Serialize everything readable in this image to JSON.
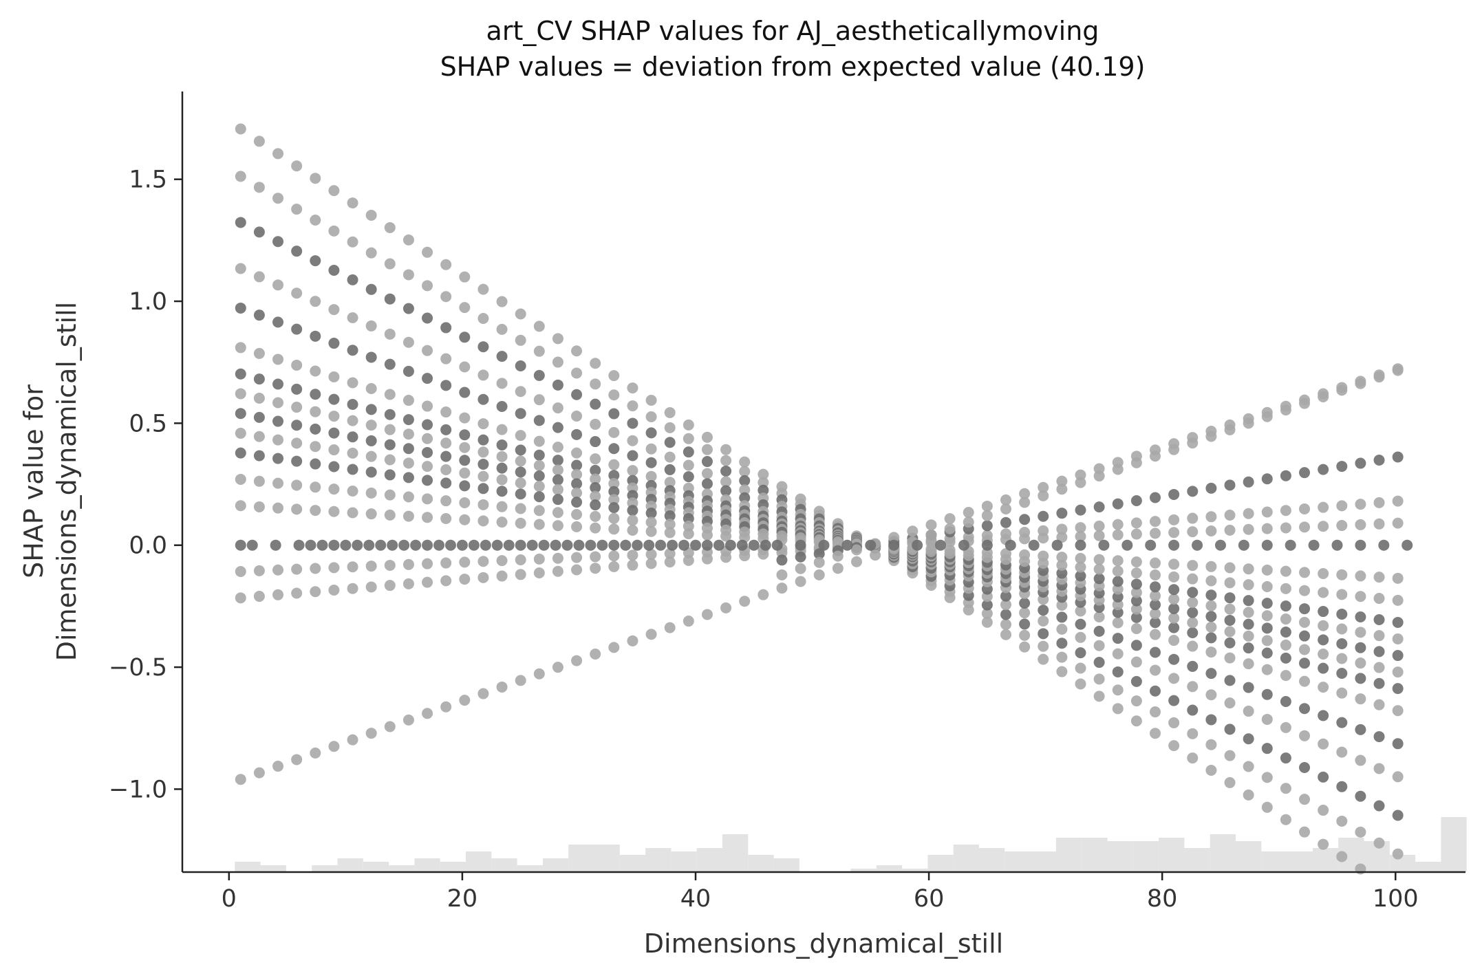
{
  "chart_data": {
    "type": "scatter",
    "title": "art_CV SHAP values for AJ_aestheticallymoving",
    "subtitle": "SHAP values = deviation from expected value (40.19)",
    "xlabel": "Dimensions_dynamical_still",
    "ylabel_line1": "SHAP value for",
    "ylabel_line2": "Dimensions_dynamical_still",
    "xlim": [
      -4,
      106
    ],
    "ylim": [
      -1.34,
      1.86
    ],
    "x_ticks": [
      0,
      20,
      40,
      60,
      80,
      100
    ],
    "y_ticks": [
      -1.0,
      -0.5,
      0.0,
      0.5,
      1.0,
      1.5
    ],
    "x_tick_labels": [
      "0",
      "20",
      "40",
      "60",
      "80",
      "100"
    ],
    "y_tick_labels": [
      "−1.0",
      "−0.5",
      "0.0",
      "0.5",
      "1.0",
      "1.5"
    ],
    "grid": false,
    "colors": {
      "dark_point": "#6e6e6e",
      "light_point": "#a8a8a8",
      "histogram": "#e3e3e3"
    },
    "series": [
      {
        "description_points": "trend lines crossing near x=55",
        "lines": [
          {
            "slope": -0.0316,
            "shade": "light"
          },
          {
            "slope": -0.028,
            "shade": "light"
          },
          {
            "slope": -0.0245,
            "shade": "dark"
          },
          {
            "slope": -0.021,
            "shade": "light"
          },
          {
            "slope": -0.018,
            "shade": "dark"
          },
          {
            "slope": -0.015,
            "shade": "light"
          },
          {
            "slope": -0.013,
            "shade": "dark"
          },
          {
            "slope": -0.0115,
            "shade": "light"
          },
          {
            "slope": -0.01,
            "shade": "dark"
          },
          {
            "slope": -0.0085,
            "shade": "light"
          },
          {
            "slope": -0.007,
            "shade": "dark"
          },
          {
            "slope": -0.005,
            "shade": "light"
          },
          {
            "slope": -0.003,
            "shade": "light"
          },
          {
            "slope": 0.002,
            "shade": "light"
          },
          {
            "slope": 0.004,
            "shade": "light"
          },
          {
            "slope": 0.008,
            "shade": "dark"
          },
          {
            "slope": 0.016,
            "shade": "light"
          }
        ]
      }
    ],
    "flat_points_x": [
      1,
      2,
      4,
      6,
      7,
      8,
      9,
      10,
      11,
      12,
      13,
      14,
      15,
      16,
      17,
      18,
      19,
      20,
      21,
      22,
      23,
      24,
      25,
      26,
      27,
      28,
      29,
      30,
      31,
      32,
      33,
      34,
      35,
      36,
      37,
      38,
      39,
      40,
      41,
      42,
      43,
      44,
      45,
      46,
      47,
      49,
      51,
      53,
      55,
      57,
      59,
      61,
      63,
      65,
      67,
      69,
      71,
      73,
      75,
      77,
      79,
      81,
      83,
      85,
      87,
      89,
      91,
      93,
      95,
      97,
      99,
      101
    ],
    "outer_upper_line": {
      "x_start": 1,
      "x_end": 101,
      "y_start": -0.96,
      "y_end": 0.73
    },
    "histogram": {
      "bin_edges_start": 0.5,
      "bin_width": 2.2,
      "counts": [
        3,
        2,
        0,
        2,
        4,
        3,
        2,
        4,
        3,
        6,
        4,
        2,
        4,
        8,
        8,
        5,
        7,
        6,
        7,
        11,
        5,
        4,
        0,
        0,
        1,
        2,
        1,
        5,
        8,
        7,
        6,
        6,
        10,
        10,
        9,
        9,
        10,
        7,
        11,
        9,
        6,
        6,
        7,
        10,
        9,
        5,
        3,
        16
      ]
    }
  }
}
